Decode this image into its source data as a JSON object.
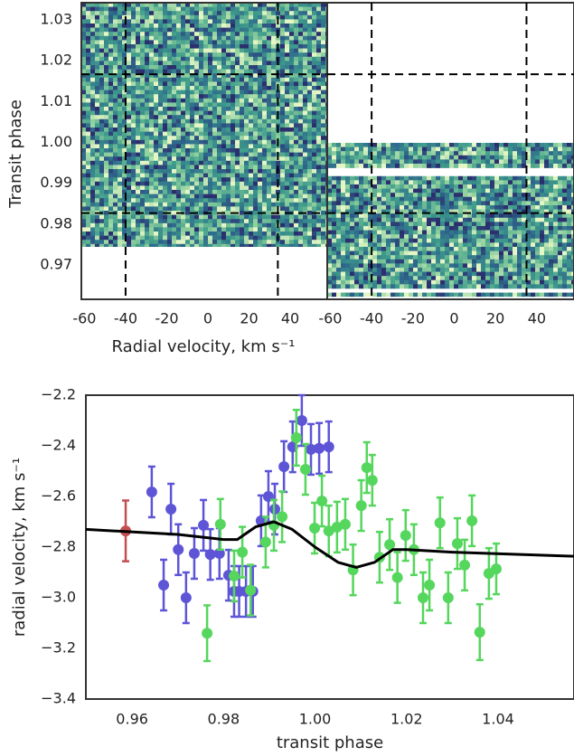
{
  "chart_data": [
    {
      "type": "heatmap",
      "ylabel": "Transit phase",
      "xlabel": "Radial velocity, km s⁻¹",
      "ylim": [
        0.9616,
        1.0342
      ],
      "yticks": [
        0.97,
        0.98,
        0.99,
        {
          "value": 1.0,
          "label": "1.00"
        },
        1.01,
        1.02,
        1.03
      ],
      "hlines": [
        0.9827,
        1.0167
      ],
      "colors": [
        "#2b2f6e",
        "#2f6a8d",
        "#3d9a8b",
        "#8ccf9d",
        "#e4f5c6"
      ],
      "panels": [
        {
          "xlim": [
            -61.5,
            58
          ],
          "xticks": [
            -60,
            -40,
            -20,
            0,
            20,
            40
          ],
          "vlines": [
            -40,
            34
          ],
          "data_range": [
            0.9745,
            1.0342
          ]
        },
        {
          "xlim": [
            -61.5,
            58
          ],
          "xticks": [
            -60,
            -40,
            -20,
            0,
            20,
            40
          ],
          "vlines": [
            -40,
            35
          ],
          "data_range": [
            0.9623,
            0.9999
          ]
        }
      ]
    },
    {
      "type": "errorbar",
      "xlabel": "transit phase",
      "ylabel": "radial velocity, km s⁻¹",
      "xlim": [
        0.9499,
        1.0566
      ],
      "ylim": [
        -3.4,
        -2.2
      ],
      "xticks": [
        0.96,
        0.98,
        {
          "value": 1.0,
          "label": "1.00"
        },
        1.02,
        1.04
      ],
      "yticks": [
        {
          "value": -3.4,
          "label": "−3.4"
        },
        {
          "value": -3.2,
          "label": "−3.2"
        },
        {
          "value": -3.0,
          "label": "−3.0"
        },
        {
          "value": -2.8,
          "label": "−2.8"
        },
        {
          "value": -2.6,
          "label": "−2.6"
        },
        {
          "value": -2.4,
          "label": "−2.4"
        },
        {
          "value": -2.2,
          "label": "−2.2"
        }
      ],
      "series": [
        {
          "color": "#c44e52",
          "x": [
            0.9586
          ],
          "values": [
            -2.736
          ],
          "errors": [
            0.12
          ]
        },
        {
          "color": "#5d55d6",
          "x": [
            0.9643,
            0.9669,
            0.9685,
            0.9701,
            0.9718,
            0.9736,
            0.9756,
            0.9771,
            0.9791,
            0.9811,
            0.9823,
            0.9834,
            0.9849,
            0.9864,
            0.9882,
            0.9898,
            0.9912,
            0.9932,
            0.9951,
            0.9971,
            0.9991,
            1.0009,
            1.003
          ],
          "values": [
            -2.582,
            -2.95,
            -2.65,
            -2.81,
            -3.0,
            -2.825,
            -2.714,
            -2.829,
            -2.825,
            -2.911,
            -2.975,
            -2.975,
            -2.975,
            -2.975,
            -2.696,
            -2.6,
            -2.65,
            -2.482,
            -2.404,
            -2.3,
            -2.414,
            -2.41,
            -2.404
          ],
          "errors": [
            0.1,
            0.1,
            0.1,
            0.1,
            0.1,
            0.1,
            0.1,
            0.1,
            0.1,
            0.1,
            0.1,
            0.1,
            0.1,
            0.1,
            0.1,
            0.1,
            0.1,
            0.1,
            0.1,
            0.1,
            0.1,
            0.1,
            0.1
          ]
        },
        {
          "color": "#55d65d",
          "x": [
            0.9764,
            0.9793,
            0.9823,
            0.9841,
            0.9859,
            0.9892,
            0.991,
            0.9928,
            0.9959,
            0.9979,
            0.9999,
            1.0015,
            1.003,
            1.0048,
            1.0066,
            1.0083,
            1.0101,
            1.0113,
            1.0125,
            1.0141,
            1.0163,
            1.018,
            1.0198,
            1.0216,
            1.0236,
            1.025,
            1.0273,
            1.0291,
            1.0311,
            1.0327,
            1.0343,
            1.036,
            1.038,
            1.0396
          ],
          "values": [
            -3.14,
            -2.71,
            -2.914,
            -2.82,
            -2.97,
            -2.78,
            -2.714,
            -2.68,
            -2.368,
            -2.493,
            -2.725,
            -2.618,
            -2.736,
            -2.721,
            -2.71,
            -2.89,
            -2.636,
            -2.486,
            -2.536,
            -2.84,
            -2.79,
            -2.92,
            -2.754,
            -2.81,
            -3.0,
            -2.95,
            -2.704,
            -3.0,
            -2.786,
            -2.871,
            -2.696,
            -3.136,
            -2.904,
            -2.886
          ],
          "errors": [
            0.11,
            0.1,
            0.1,
            0.1,
            0.1,
            0.1,
            0.1,
            0.1,
            0.11,
            0.1,
            0.1,
            0.1,
            0.1,
            0.1,
            0.1,
            0.1,
            0.1,
            0.1,
            0.1,
            0.1,
            0.1,
            0.1,
            0.1,
            0.1,
            0.1,
            0.1,
            0.1,
            0.1,
            0.1,
            0.1,
            0.1,
            0.11,
            0.1,
            0.1
          ]
        }
      ],
      "model": {
        "color": "#000000",
        "x": [
          0.9499,
          0.97,
          0.98,
          0.983,
          0.987,
          0.991,
          0.995,
          1.0,
          1.005,
          1.009,
          1.013,
          1.017,
          1.02,
          1.03,
          1.0566
        ],
        "values": [
          -2.73,
          -2.75,
          -2.77,
          -2.77,
          -2.72,
          -2.7,
          -2.73,
          -2.8,
          -2.86,
          -2.88,
          -2.86,
          -2.81,
          -2.81,
          -2.82,
          -2.836
        ]
      }
    }
  ]
}
